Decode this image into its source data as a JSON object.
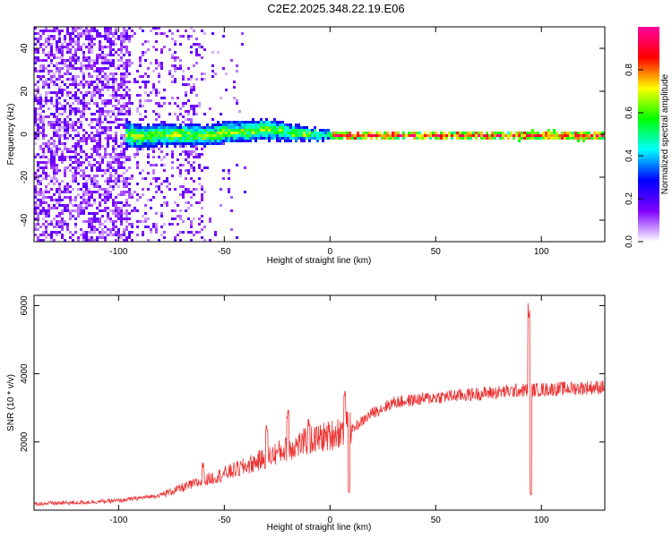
{
  "title": "C2E2.2025.348.22.19.E06",
  "chart_data": [
    {
      "type": "heatmap",
      "xlabel": "Height of straight line (km)",
      "ylabel": "Frequency (Hz)",
      "xlim": [
        -140,
        130
      ],
      "ylim": [
        -50,
        50
      ],
      "xticks": [
        -100,
        -50,
        0,
        50,
        100
      ],
      "yticks": [
        -40,
        -20,
        0,
        20,
        40
      ],
      "colorbar": {
        "label": "Normalized spectral amplitude",
        "range": [
          0,
          1
        ],
        "ticks": [
          "0.0",
          "0.2",
          "0.4",
          "0.6",
          "0.8"
        ],
        "tick_values": [
          0,
          0.2,
          0.4,
          0.6,
          0.8
        ],
        "colors": [
          "#ffffff",
          "#7f00ff",
          "#0000ff",
          "#00ffff",
          "#00ff00",
          "#ffff00",
          "#ff0000",
          "#ff00a0"
        ]
      },
      "band": {
        "center_hz": [
          [
            -100,
            0.5
          ],
          [
            -90,
            -0.5
          ],
          [
            -80,
            0.5
          ],
          [
            -70,
            0.5
          ],
          [
            -60,
            0
          ],
          [
            -50,
            1.5
          ],
          [
            -40,
            2
          ],
          [
            -30,
            3
          ],
          [
            -20,
            1.5
          ],
          [
            -10,
            0.5
          ],
          [
            0,
            0
          ],
          [
            130,
            0
          ]
        ],
        "halfwidth_hz": [
          [
            -100,
            6
          ],
          [
            -70,
            5
          ],
          [
            -50,
            5
          ],
          [
            -30,
            5
          ],
          [
            -10,
            3
          ],
          [
            0,
            2
          ],
          [
            30,
            1.5
          ],
          [
            130,
            2
          ]
        ]
      }
    },
    {
      "type": "line",
      "xlabel": "Height of straight line (km)",
      "ylabel": "SNR (10 * v/v)",
      "xlim": [
        -140,
        130
      ],
      "ylim": [
        0,
        6300
      ],
      "xticks": [
        -100,
        -50,
        0,
        50,
        100
      ],
      "yticks": [
        2000,
        4000,
        6000
      ],
      "color": "#ee3333",
      "envelope": [
        [
          -140,
          170
        ],
        [
          -120,
          200
        ],
        [
          -100,
          260
        ],
        [
          -80,
          420
        ],
        [
          -60,
          800
        ],
        [
          -40,
          1200
        ],
        [
          -20,
          1700
        ],
        [
          -10,
          1900
        ],
        [
          0,
          2050
        ],
        [
          10,
          2300
        ],
        [
          20,
          2800
        ],
        [
          30,
          3100
        ],
        [
          50,
          3250
        ],
        [
          70,
          3350
        ],
        [
          90,
          3450
        ],
        [
          110,
          3500
        ],
        [
          130,
          3550
        ]
      ],
      "spikes": [
        [
          -60,
          1400
        ],
        [
          -30,
          2500
        ],
        [
          -20,
          3100
        ],
        [
          -10,
          2700
        ],
        [
          7,
          3500
        ],
        [
          9,
          600
        ],
        [
          94,
          6300
        ],
        [
          95,
          500
        ]
      ]
    }
  ]
}
